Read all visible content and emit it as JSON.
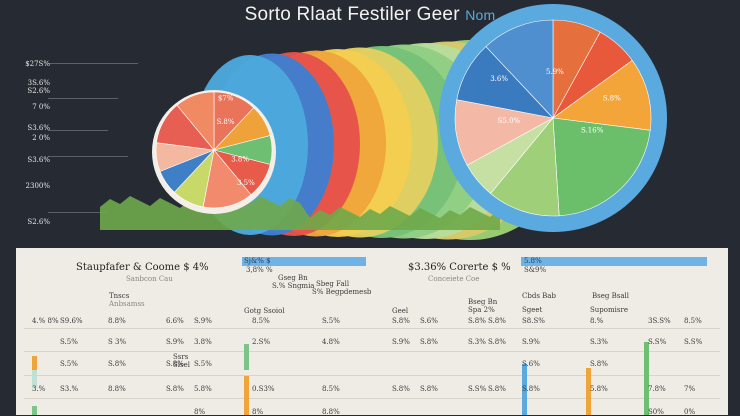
{
  "title": "Sorto Rlaat Festiler Geer",
  "title_accent": "Nom",
  "axis_labels": [
    "$27S%",
    "3S.6%",
    "S2.6%",
    "7 0%",
    "S3.6%",
    "2 0%",
    "S3.6%",
    "2300%",
    "S2.6%"
  ],
  "chart_data": {
    "type": "pie",
    "title": "Sorto Rlaat Festiler Geer Nom",
    "pies": [
      {
        "role": "small",
        "slices": [
          {
            "label": "",
            "value": 12,
            "color": "#e9745a"
          },
          {
            "label": "",
            "value": 9,
            "color": "#f0a23a"
          },
          {
            "label": "",
            "value": 8,
            "color": "#6fbf73"
          },
          {
            "label": "",
            "value": 10,
            "color": "#e85b4a"
          },
          {
            "label": "",
            "value": 14,
            "color": "#f28b6e"
          },
          {
            "label": "",
            "value": 9,
            "color": "#c8d96a"
          },
          {
            "label": "",
            "value": 7,
            "color": "#3f7fc8"
          },
          {
            "label": "",
            "value": 8,
            "color": "#f4b8a0"
          },
          {
            "label": "",
            "value": 12,
            "color": "#e65f52"
          },
          {
            "label": "",
            "value": 11,
            "color": "#ef8a63"
          }
        ],
        "data_labels": [
          "S.8%",
          "3.8%",
          "3.5%",
          "$7%"
        ]
      },
      {
        "role": "large",
        "slices": [
          {
            "label": "",
            "value": 8,
            "color": "#e5703e"
          },
          {
            "label": "",
            "value": 7,
            "color": "#e8593c"
          },
          {
            "label": "",
            "value": 12,
            "color": "#f3a53a"
          },
          {
            "label": "",
            "value": 22,
            "color": "#6cbf6a"
          },
          {
            "label": "",
            "value": 12,
            "color": "#9fd079"
          },
          {
            "label": "",
            "value": 6,
            "color": "#c6e0a3"
          },
          {
            "label": "",
            "value": 11,
            "color": "#f4b8a6"
          },
          {
            "label": "",
            "value": 10,
            "color": "#3a7bbf"
          },
          {
            "label": "",
            "value": 12,
            "color": "#4f8fd0"
          }
        ],
        "data_labels": [
          "5.9%",
          "3.6%",
          "S.8%",
          "S.16%",
          "S5.0%"
        ]
      }
    ],
    "bands": [
      "#4ca8dc",
      "#3f7fcf",
      "#e6534a",
      "#f0a53b",
      "#f5cd4f",
      "#e0d061",
      "#76c178",
      "#8fcf83",
      "#b8dc9c",
      "#d7c86a",
      "#9ccf74"
    ],
    "legend": "none",
    "grid": true
  },
  "panel": {
    "left": {
      "heading": "Staupfafer & Coome $ 4%",
      "blue_label": "Sj&% $",
      "blue_sub": "3,8% %",
      "sub_left": "Sanbcon Cau",
      "col_a": "Gseg Bn",
      "col_a_sub": "S.% Sngmia",
      "col_b": "Sbeg Fall",
      "col_b_sub": "S% Begpdemesb",
      "row_head_1": "Tnscs",
      "row_head_1_sub": "Anbsamss",
      "row_head_2": "Gotg Ssoiol",
      "mid_head": "Ssrs",
      "mid_head_2": "Sisel",
      "rows": [
        [
          "4.% 8%",
          "S9.6%",
          "8.8%",
          "6.6%",
          "S.9%",
          "8.5%",
          "S.5%"
        ],
        [
          "",
          "S.5%",
          "S 3%",
          "S.9%",
          "3.8%",
          "2.S%",
          "4.8%"
        ],
        [
          "",
          "S.5%",
          "S.8%",
          "S.8%",
          "S.5%",
          "",
          ""
        ],
        [
          "3.%",
          "S3.%",
          "8.8%",
          "S.8%",
          "5.8%",
          "0.S3%",
          "8.5%"
        ],
        [
          "",
          "",
          "",
          "",
          "8%",
          "8%",
          "8.8%"
        ]
      ]
    },
    "right": {
      "heading": "$3.36% Corerte $ %",
      "blue_label": "5.8%",
      "blue_sub": "S&9%",
      "sub_left": "Conceiete Coe",
      "col_a": "Bseg Bn",
      "col_a_sub": "Spa 2%",
      "col_b": "Bseg Bsall",
      "col_b_sub": "Supomisre",
      "row_head_1": "Geel",
      "row_head_2": "Sgeet",
      "row_head_3": "Cbds Bab",
      "rows": [
        [
          "S.8%",
          "S.6%",
          "S.8%",
          "S.8%",
          "S8.S%",
          "8.%",
          "3S.S%",
          "8.5%"
        ],
        [
          "S.9%",
          "S.8%",
          "S.3%",
          "S.8%",
          "S.9%",
          "S.3%",
          "S.S%",
          "S.S%"
        ],
        [
          "",
          "",
          "",
          "",
          "S.6%",
          "S.8%",
          "",
          ""
        ],
        [
          "S.8%",
          "S.8%",
          "S.S%",
          "S.8%",
          "S.8%",
          "5.8%",
          "7.8%",
          "7%"
        ],
        [
          "",
          "",
          "",
          "",
          "",
          "",
          "S0%",
          "0%"
        ]
      ]
    }
  }
}
